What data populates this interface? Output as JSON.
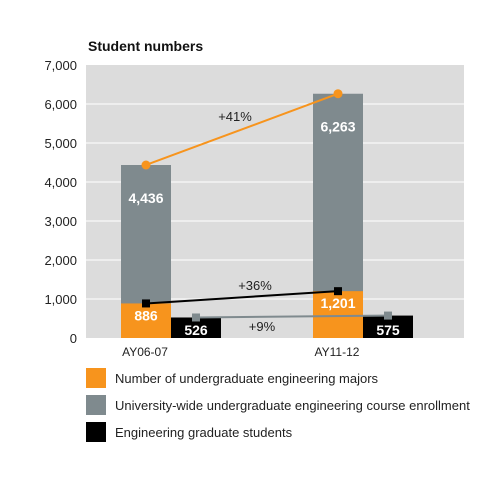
{
  "colors": {
    "plot_bg": "#dcdcdc",
    "grid": "#ffffff",
    "majors": "#f7941d",
    "enrollment": "#7f8a8e",
    "graduate": "#000000",
    "value_text": "#ffffff"
  },
  "chart_data": {
    "type": "bar",
    "title": "Student numbers",
    "ylim": [
      0,
      7000
    ],
    "yticks": [
      "0",
      "1,000",
      "2,000",
      "3,000",
      "4,000",
      "5,000",
      "6,000",
      "7,000"
    ],
    "ytick_values": [
      0,
      1000,
      2000,
      3000,
      4000,
      5000,
      6000,
      7000
    ],
    "grid": true,
    "categories": [
      "AY06-07",
      "AY11-12"
    ],
    "series": [
      {
        "name": "Number of undergraduate engineering majors",
        "values": [
          886,
          1201
        ],
        "labels": [
          "886",
          "1,201"
        ],
        "color_key": "majors"
      },
      {
        "name": "University-wide undergraduate engineering course enrollment",
        "values": [
          4436,
          6263
        ],
        "labels": [
          "4,436",
          "6,263"
        ],
        "color_key": "enrollment"
      },
      {
        "name": "Engineering graduate students",
        "values": [
          526,
          575
        ],
        "labels": [
          "526",
          "575"
        ],
        "color_key": "graduate"
      }
    ],
    "annotations": {
      "enrollment_change": "+41%",
      "majors_change": "+36%",
      "graduate_change": "+9%"
    },
    "legend_position": "bottom"
  }
}
